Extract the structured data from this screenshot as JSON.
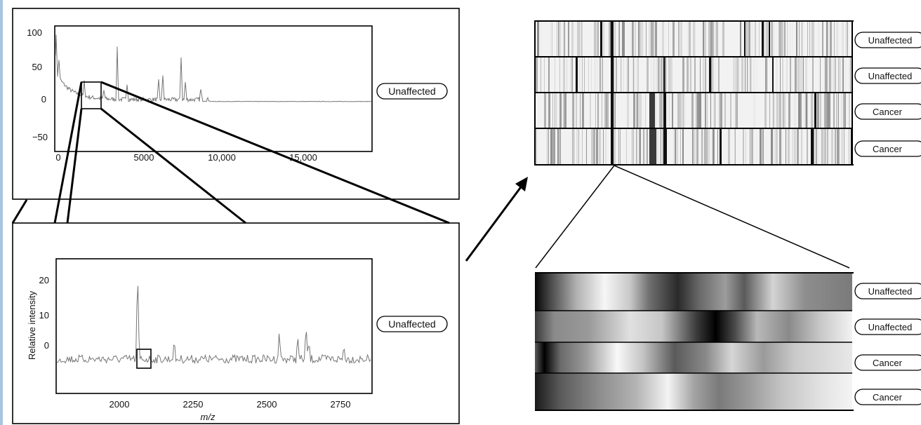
{
  "panel_a": {
    "y_ticks": [
      "100",
      "50",
      "0",
      "−50"
    ],
    "x_ticks": [
      "0",
      "5000",
      "10,000",
      "15,000"
    ],
    "sample_label": "Unaffected"
  },
  "panel_b": {
    "y_axis_label": "Relative intensity",
    "y_ticks": [
      "20",
      "10",
      "0"
    ],
    "x_ticks": [
      "2000",
      "2250",
      "2500",
      "2750"
    ],
    "x_axis_label": "m/z",
    "sample_label": "Unaffected"
  },
  "heatmap_top": {
    "rows": [
      {
        "label": "Unaffected"
      },
      {
        "label": "Unaffected"
      },
      {
        "label": "Cancer"
      },
      {
        "label": "Cancer"
      }
    ]
  },
  "heatmap_bottom": {
    "rows": [
      {
        "label": "Unaffected"
      },
      {
        "label": "Unaffected"
      },
      {
        "label": "Cancer"
      },
      {
        "label": "Cancer"
      }
    ]
  },
  "colors": {
    "line": "#000000",
    "trace": "#777777",
    "accent_rule": "#a9c4de"
  }
}
